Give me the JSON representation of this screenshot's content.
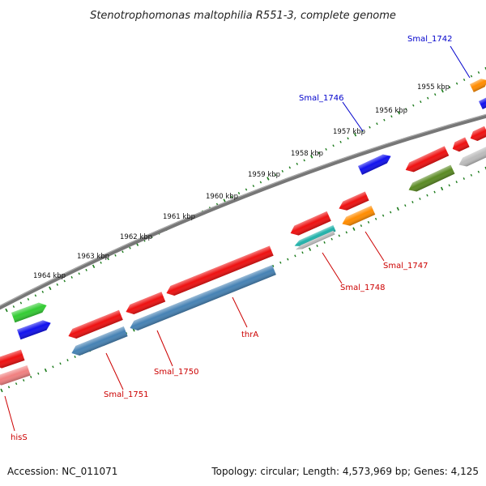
{
  "title": "Stenotrophomonas maltophilia R551-3, complete genome",
  "footer": {
    "accession": "Accession: NC_011071",
    "summary": "Topology: circular; Length: 4,573,969 bp; Genes: 4,125"
  },
  "ticks": [
    "1955 kbp",
    "1956 kbp",
    "1957 kbp",
    "1958 kbp",
    "1959 kbp",
    "1960 kbp",
    "1961 kbp",
    "1962 kbp",
    "1963 kbp",
    "1964 kbp"
  ],
  "gene_labels": [
    {
      "text": "Smal_1742",
      "strand": "plus"
    },
    {
      "text": "Smal_1746",
      "strand": "plus"
    },
    {
      "text": "Smal_1747",
      "strand": "minus"
    },
    {
      "text": "Smal_1748",
      "strand": "minus"
    },
    {
      "text": "thrA",
      "strand": "minus"
    },
    {
      "text": "Smal_1750",
      "strand": "minus"
    },
    {
      "text": "Smal_1751",
      "strand": "minus"
    },
    {
      "text": "hisS",
      "strand": "minus"
    }
  ],
  "colors": {
    "plus_label": "#0000cc",
    "minus_label": "#cc0000",
    "tick_dots": "#1a7a1a",
    "backbone": "#777777",
    "gene_red": "#ee1111",
    "gene_blue": "#1111ee",
    "gene_orange": "#ff8c00",
    "gene_steel": "#4682b4",
    "gene_green": "#33cc33",
    "gene_olive": "#5a8a23",
    "gene_grey": "#bbbbbb",
    "gene_pink": "#f08080",
    "gene_cyan": "#20b2aa"
  }
}
